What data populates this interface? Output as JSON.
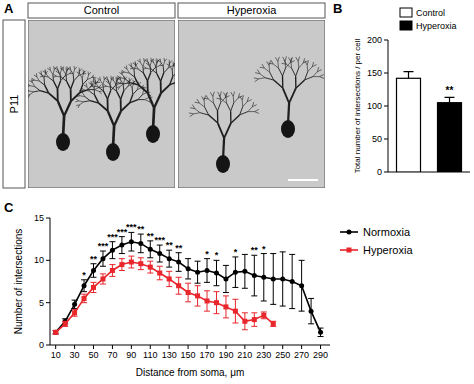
{
  "micrograph": {
    "label": "A",
    "row_label": "P11",
    "columns": [
      "Control",
      "Hyperoxia"
    ]
  },
  "chart_data": [
    {
      "type": "bar",
      "annotations": [
        "B"
      ],
      "y_label": "Total number of intersections / per cell",
      "categories": [
        "Control",
        "Hyperoxia"
      ],
      "values": [
        142,
        105
      ],
      "errors": [
        10,
        8
      ],
      "colors": [
        "#ffffff",
        "#000000"
      ],
      "ylim": [
        0,
        200
      ],
      "yticks": [
        0,
        50,
        100,
        150,
        200
      ],
      "legend": "top-right",
      "significance": [
        {
          "index": 1,
          "label": "**"
        }
      ]
    },
    {
      "type": "line",
      "annotations": [
        "C"
      ],
      "x_label": "Distance from soma, μm",
      "y_label": "Number of intersections",
      "x": [
        10,
        20,
        30,
        40,
        50,
        60,
        70,
        80,
        90,
        100,
        110,
        120,
        130,
        140,
        150,
        160,
        170,
        180,
        190,
        200,
        210,
        220,
        230,
        240,
        250,
        260,
        270,
        280,
        290
      ],
      "series": [
        {
          "name": "Normoxia",
          "color": "#000000",
          "marker": "circle",
          "values": [
            1.5,
            2.8,
            4.8,
            7.0,
            8.8,
            10.2,
            11.2,
            11.8,
            12.2,
            12.0,
            11.3,
            10.8,
            10.2,
            9.8,
            9.0,
            8.6,
            8.8,
            8.5,
            7.8,
            8.6,
            8.7,
            8.2,
            8.0,
            7.8,
            7.8,
            7.5,
            7.0,
            4.0,
            1.5
          ],
          "errors": [
            0.2,
            0.3,
            0.5,
            0.7,
            0.8,
            0.9,
            1.0,
            1.0,
            1.1,
            1.1,
            1.0,
            1.0,
            1.0,
            1.1,
            1.2,
            1.3,
            1.4,
            1.5,
            1.6,
            1.8,
            2.0,
            2.4,
            2.8,
            3.0,
            3.2,
            3.2,
            3.0,
            1.5,
            0.5
          ]
        },
        {
          "name": "Hyperoxia",
          "color": "#e8262b",
          "marker": "square",
          "values": [
            1.5,
            2.5,
            3.8,
            5.5,
            6.8,
            7.8,
            8.8,
            9.5,
            9.8,
            9.6,
            9.2,
            8.5,
            7.8,
            7.0,
            6.2,
            5.8,
            5.2,
            5.0,
            4.5,
            4.0,
            2.8,
            3.0,
            3.5,
            2.5,
            null,
            null,
            null,
            null,
            null
          ],
          "errors": [
            0.2,
            0.3,
            0.4,
            0.5,
            0.6,
            0.6,
            0.7,
            0.7,
            0.7,
            0.7,
            0.7,
            0.8,
            0.9,
            1.0,
            1.1,
            1.2,
            1.2,
            1.3,
            1.3,
            1.4,
            1.0,
            0.8,
            0.4,
            0.3,
            null,
            null,
            null,
            null,
            null
          ]
        }
      ],
      "xlim": [
        4,
        300
      ],
      "xticks": [
        10,
        30,
        50,
        70,
        90,
        110,
        130,
        150,
        170,
        190,
        210,
        230,
        250,
        270,
        290
      ],
      "ylim": [
        0,
        15
      ],
      "yticks": [
        0,
        5,
        10,
        15
      ],
      "legend": "right",
      "significance": [
        {
          "x": 40,
          "label": "*"
        },
        {
          "x": 50,
          "label": "**"
        },
        {
          "x": 60,
          "label": "***"
        },
        {
          "x": 70,
          "label": "***"
        },
        {
          "x": 80,
          "label": "***"
        },
        {
          "x": 90,
          "label": "***"
        },
        {
          "x": 100,
          "label": "**"
        },
        {
          "x": 110,
          "label": "**"
        },
        {
          "x": 120,
          "label": "***"
        },
        {
          "x": 130,
          "label": "**"
        },
        {
          "x": 140,
          "label": "**"
        },
        {
          "x": 170,
          "label": "*"
        },
        {
          "x": 180,
          "label": "*"
        },
        {
          "x": 200,
          "label": "*"
        },
        {
          "x": 220,
          "label": "**"
        },
        {
          "x": 230,
          "label": "*"
        }
      ]
    }
  ]
}
